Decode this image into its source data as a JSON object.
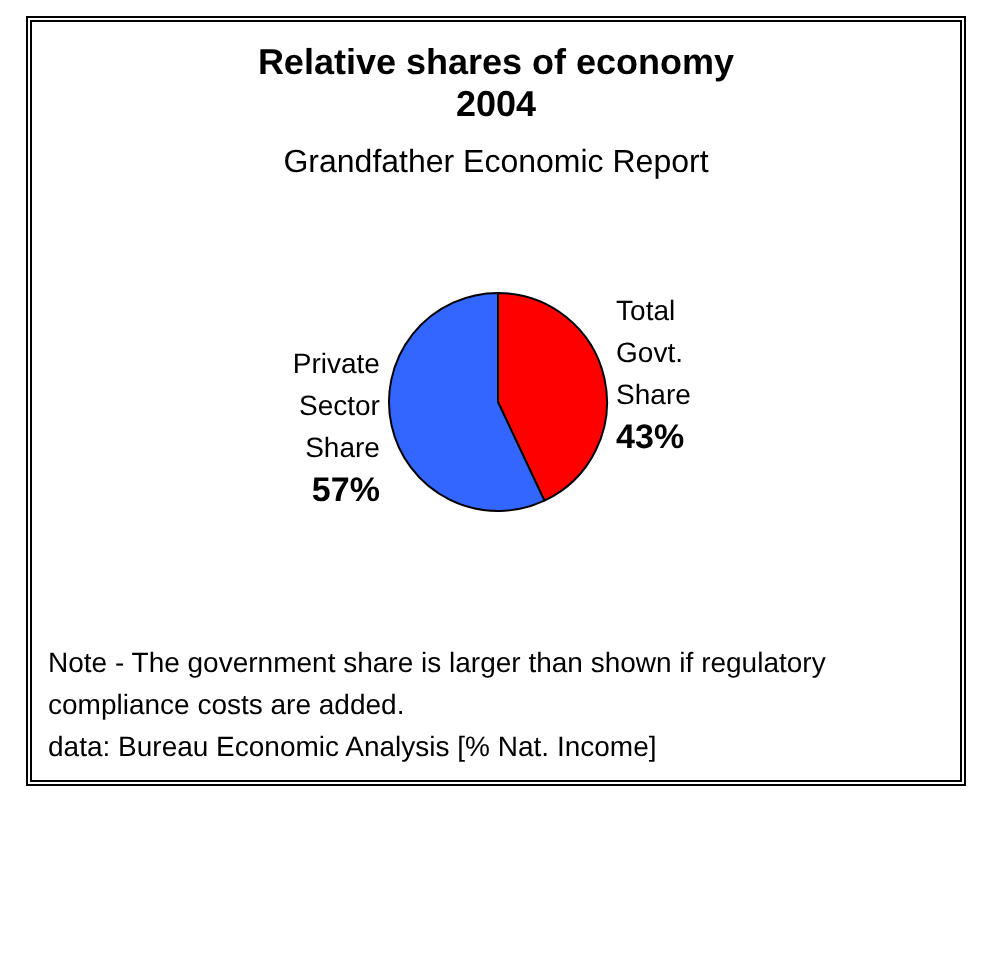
{
  "chart_data": {
    "type": "pie",
    "title": "Relative shares of economy 2004",
    "subtitle": "Grandfather Economic Report",
    "categories": [
      "Total Govt. Share",
      "Private Sector Share"
    ],
    "values": [
      43,
      57
    ],
    "colors": [
      "#ff0000",
      "#3366ff"
    ],
    "value_labels": [
      "43%",
      "57%"
    ],
    "legend": false,
    "annotations": [
      "Note - The government share is larger than shown if regulatory compliance costs are added.",
      "data: Bureau Economic Analysis   [% Nat. Income]"
    ]
  }
}
